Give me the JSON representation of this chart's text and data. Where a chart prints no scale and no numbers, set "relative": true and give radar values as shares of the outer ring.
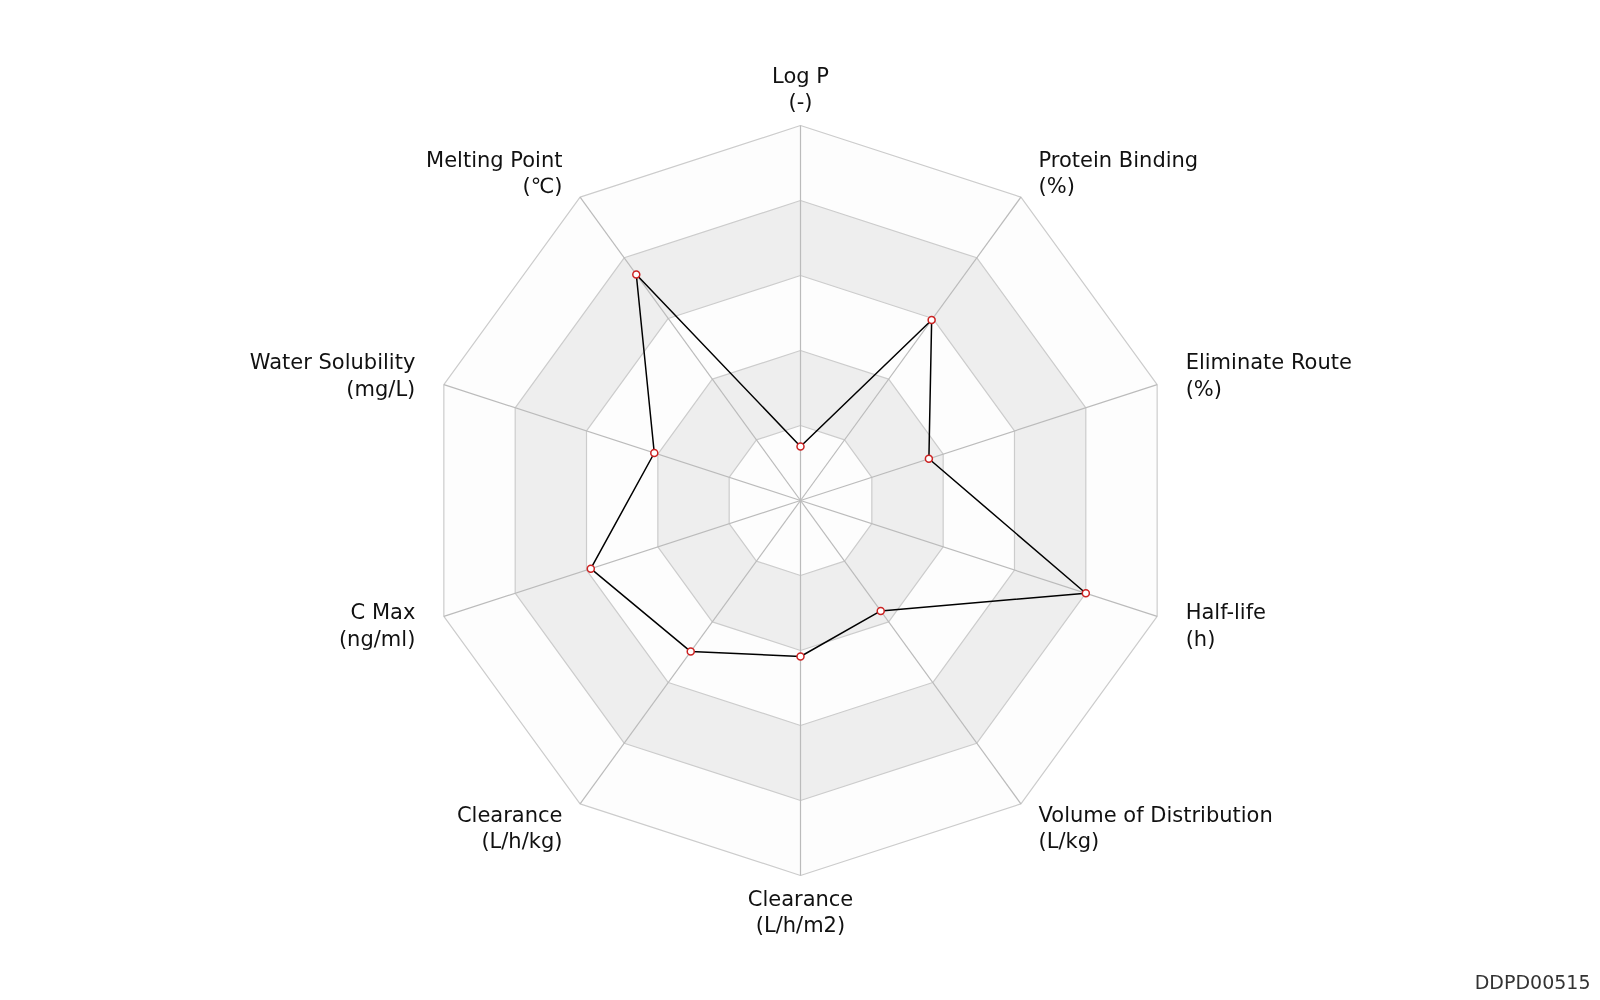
{
  "chart_data": {
    "type": "radar",
    "relative": true,
    "categories": [
      "Log P\n(-)",
      "Protein Binding\n(%)",
      "Eliminate Route\n(%)",
      "Half-life\n(h)",
      "Volume of Distribution\n(L/kg)",
      "Clearance\n(L/h/m2)",
      "Clearance\n(L/h/kg)",
      "C Max\n(ng/ml)",
      "Water Solubility\n(mg/L)",
      "Melting Point\n(℃)"
    ],
    "series": [
      {
        "color": "#000000",
        "values": [
          0.144,
          0.595,
          0.36,
          0.8,
          0.364,
          0.416,
          0.498,
          0.588,
          0.41,
          0.745
        ]
      }
    ],
    "marker": "circle",
    "line_style": "solid",
    "annotations": [
      "DDPD00515"
    ]
  }
}
